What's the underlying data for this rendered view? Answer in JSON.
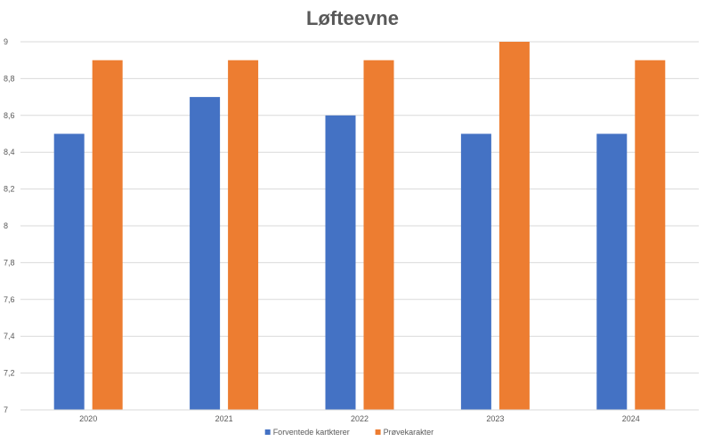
{
  "chart_data": {
    "type": "bar",
    "title": "Løfteevne",
    "xlabel": "",
    "ylabel": "",
    "categories": [
      "2020",
      "2021",
      "2022",
      "2023",
      "2024"
    ],
    "series": [
      {
        "name": "Forventede kartkterer",
        "color": "#4472c4",
        "values": [
          8.5,
          8.7,
          8.6,
          8.5,
          8.5
        ]
      },
      {
        "name": "Prøvekarakter",
        "color": "#ed7d31",
        "values": [
          8.9,
          8.9,
          8.9,
          9.0,
          8.9
        ]
      }
    ],
    "ylim": [
      7,
      9
    ],
    "yticks": [
      "7",
      "7,2",
      "7,4",
      "7,6",
      "7,8",
      "8",
      "8,2",
      "8,4",
      "8,6",
      "8,8",
      "9"
    ],
    "grid": true,
    "legend_position": "bottom"
  }
}
